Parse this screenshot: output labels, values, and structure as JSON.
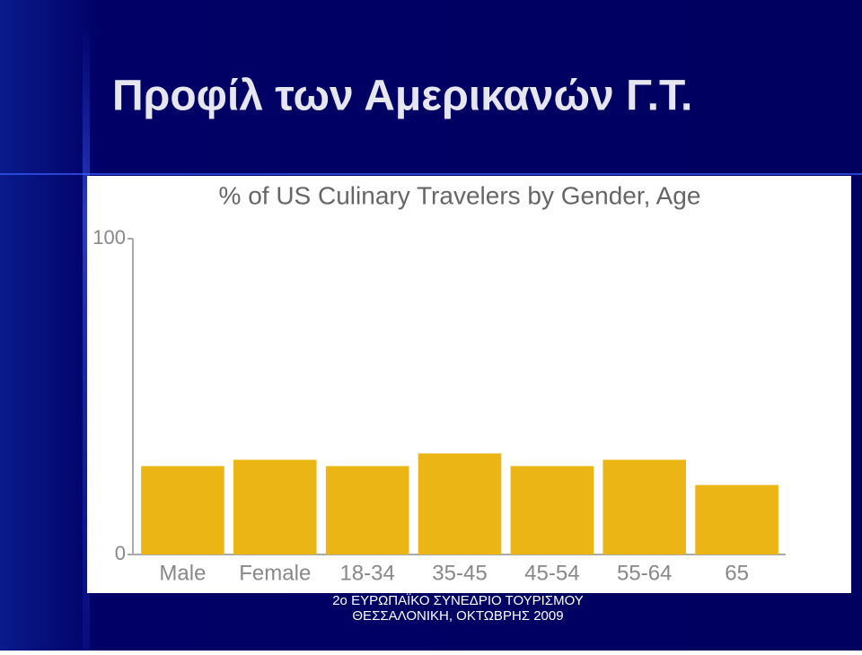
{
  "slide": {
    "title": "Προφίλ των Αμερικανών Γ.Τ.",
    "footer": [
      "2ο ΕΥΡΩΠΑΪΚΟ ΣΥΝΕΔΡΙΟ ΤΟΥΡΙΣΜΟΥ",
      "ΘΕΣΣΑΛΟΝΙΚΗ, ΟΚΤΩΒΡΗΣ 2009"
    ]
  },
  "chart_data": {
    "type": "bar",
    "title": "% of US Culinary Travelers by Gender, Age",
    "categories": [
      "Male",
      "Female",
      "18-34",
      "35-45",
      "45-54",
      "55-64",
      "65"
    ],
    "values": [
      28,
      30,
      28,
      32,
      28,
      30,
      22
    ],
    "color": "#ebb515",
    "ylim": [
      0,
      100
    ],
    "yticks": [
      0,
      100
    ],
    "grid": false
  }
}
